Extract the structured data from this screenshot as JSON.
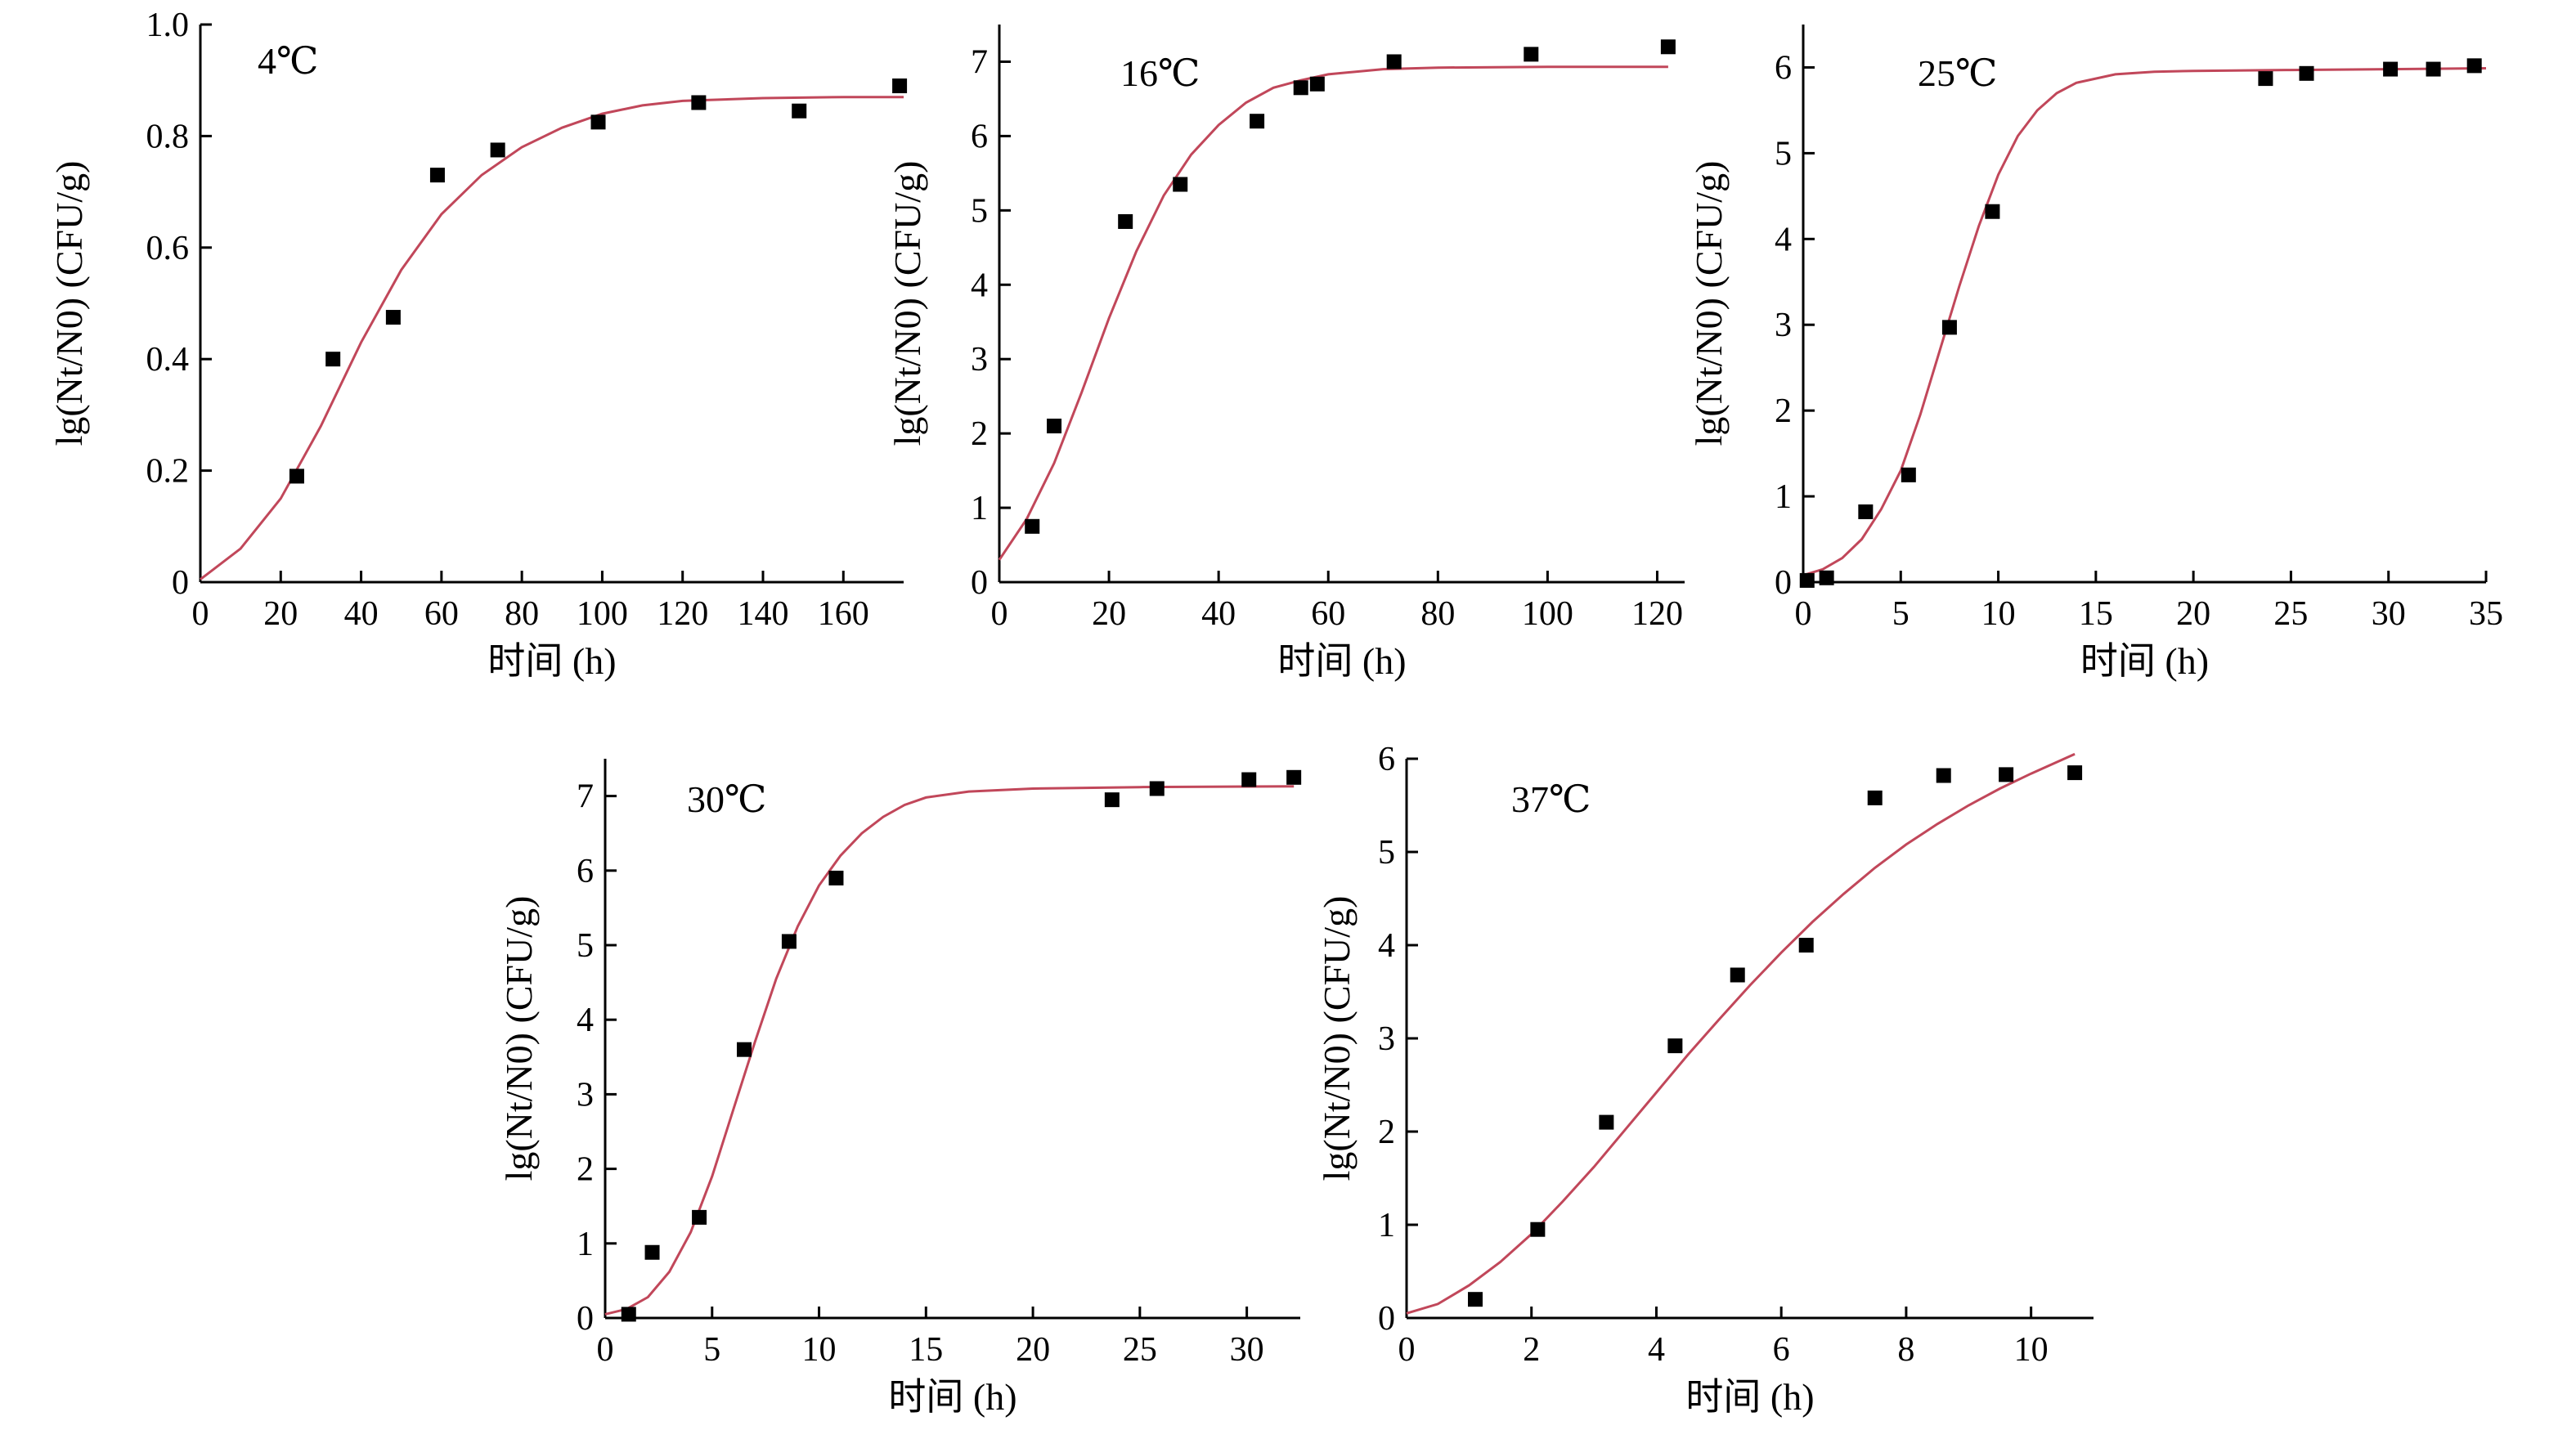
{
  "chart_data": [
    {
      "type": "scatter",
      "panel_label": "4℃",
      "xlabel": "时间 (h)",
      "ylabel": "lg(Nt/N0) (CFU/g)",
      "xlim": [
        0,
        175
      ],
      "ylim": [
        0,
        1.0
      ],
      "xticks": [
        0,
        20,
        40,
        60,
        80,
        100,
        120,
        140,
        160
      ],
      "yticks": [
        0,
        0.2,
        0.4,
        0.6,
        0.8,
        1.0
      ],
      "ytick_labels": [
        "0",
        "0.2",
        "0.4",
        "0.6",
        "0.8",
        "1.0"
      ],
      "grid": false,
      "series": [
        {
          "type": "scatter",
          "x": [
            24,
            33,
            48,
            59,
            74,
            99,
            124,
            149,
            174
          ],
          "y": [
            0.19,
            0.4,
            0.475,
            0.73,
            0.775,
            0.825,
            0.86,
            0.845,
            0.89
          ]
        },
        {
          "type": "line",
          "x": [
            0,
            10,
            20,
            30,
            40,
            50,
            60,
            70,
            80,
            90,
            100,
            110,
            120,
            140,
            160,
            175
          ],
          "y": [
            0.005,
            0.06,
            0.15,
            0.28,
            0.43,
            0.56,
            0.66,
            0.73,
            0.78,
            0.815,
            0.84,
            0.855,
            0.863,
            0.868,
            0.87,
            0.87
          ]
        }
      ]
    },
    {
      "type": "scatter",
      "panel_label": "16℃",
      "xlabel": "时间 (h)",
      "ylabel": "lg(Nt/N0) (CFU/g)",
      "xlim": [
        0,
        125
      ],
      "ylim": [
        0,
        7.5
      ],
      "xticks": [
        0,
        20,
        40,
        60,
        80,
        100,
        120
      ],
      "yticks": [
        0,
        1,
        2,
        3,
        4,
        5,
        6,
        7
      ],
      "ytick_labels": [
        "0",
        "1",
        "2",
        "3",
        "4",
        "5",
        "6",
        "7"
      ],
      "grid": false,
      "series": [
        {
          "type": "scatter",
          "x": [
            6,
            10,
            23,
            33,
            47,
            55,
            58,
            72,
            97,
            122
          ],
          "y": [
            0.75,
            2.1,
            4.85,
            5.35,
            6.2,
            6.65,
            6.7,
            7.0,
            7.1,
            7.2
          ]
        },
        {
          "type": "line",
          "x": [
            0,
            5,
            10,
            15,
            20,
            25,
            30,
            35,
            40,
            45,
            50,
            55,
            60,
            70,
            80,
            100,
            122
          ],
          "y": [
            0.3,
            0.85,
            1.6,
            2.55,
            3.55,
            4.45,
            5.2,
            5.75,
            6.15,
            6.45,
            6.65,
            6.75,
            6.83,
            6.9,
            6.92,
            6.93,
            6.93
          ]
        }
      ]
    },
    {
      "type": "scatter",
      "panel_label": "25℃",
      "xlabel": "时间 (h)",
      "ylabel": "lg(Nt/N0) (CFU/g)",
      "xlim": [
        0,
        35
      ],
      "ylim": [
        0,
        6.5
      ],
      "xticks": [
        0,
        5,
        10,
        15,
        20,
        25,
        30,
        35
      ],
      "yticks": [
        0,
        1,
        2,
        3,
        4,
        5,
        6
      ],
      "ytick_labels": [
        "0",
        "1",
        "2",
        "3",
        "4",
        "5",
        "6"
      ],
      "grid": false,
      "series": [
        {
          "type": "scatter",
          "x": [
            0.2,
            1.2,
            3.2,
            5.4,
            7.5,
            9.7,
            23.7,
            25.8,
            30.1,
            32.3,
            34.4
          ],
          "y": [
            0.02,
            0.05,
            0.82,
            1.25,
            2.97,
            4.32,
            5.87,
            5.93,
            5.98,
            5.98,
            6.02
          ]
        },
        {
          "type": "line",
          "x": [
            0,
            1,
            2,
            3,
            4,
            5,
            6,
            7,
            8,
            9,
            10,
            11,
            12,
            13,
            14,
            16,
            18,
            20,
            25,
            30,
            35
          ],
          "y": [
            0.08,
            0.15,
            0.28,
            0.5,
            0.85,
            1.3,
            1.95,
            2.7,
            3.45,
            4.15,
            4.75,
            5.2,
            5.5,
            5.7,
            5.82,
            5.92,
            5.95,
            5.96,
            5.97,
            5.98,
            5.99
          ]
        }
      ]
    },
    {
      "type": "scatter",
      "panel_label": "30℃",
      "xlabel": "时间 (h)",
      "ylabel": "lg(Nt/N0) (CFU/g)",
      "xlim": [
        0,
        32.5
      ],
      "ylim": [
        0,
        7.5
      ],
      "xticks": [
        0,
        5,
        10,
        15,
        20,
        25,
        30
      ],
      "yticks": [
        0,
        1,
        2,
        3,
        4,
        5,
        6,
        7
      ],
      "ytick_labels": [
        "0",
        "1",
        "2",
        "3",
        "4",
        "5",
        "6",
        "7"
      ],
      "grid": false,
      "series": [
        {
          "type": "scatter",
          "x": [
            1.1,
            2.2,
            4.4,
            6.5,
            8.6,
            10.8,
            23.7,
            25.8,
            30.1,
            32.2
          ],
          "y": [
            0.05,
            0.88,
            1.35,
            3.6,
            5.05,
            5.9,
            6.95,
            7.1,
            7.22,
            7.25
          ]
        },
        {
          "type": "line",
          "x": [
            0,
            1,
            2,
            3,
            4,
            5,
            6,
            7,
            8,
            9,
            10,
            11,
            12,
            13,
            14,
            15,
            17,
            20,
            25,
            32.2
          ],
          "y": [
            0.05,
            0.12,
            0.28,
            0.62,
            1.15,
            1.9,
            2.8,
            3.7,
            4.55,
            5.25,
            5.8,
            6.2,
            6.5,
            6.72,
            6.88,
            6.98,
            7.06,
            7.1,
            7.12,
            7.13
          ]
        }
      ]
    },
    {
      "type": "scatter",
      "panel_label": "37℃",
      "xlabel": "时间 (h)",
      "ylabel": "lg(Nt/N0) (CFU/g)",
      "xlim": [
        0,
        11
      ],
      "ylim": [
        0,
        6
      ],
      "xticks": [
        0,
        2,
        4,
        6,
        8,
        10
      ],
      "yticks": [
        0,
        1,
        2,
        3,
        4,
        5,
        6
      ],
      "ytick_labels": [
        "0",
        "1",
        "2",
        "3",
        "4",
        "5",
        "6"
      ],
      "grid": false,
      "series": [
        {
          "type": "scatter",
          "x": [
            1.1,
            2.1,
            3.2,
            4.3,
            5.3,
            6.4,
            7.5,
            8.6,
            9.6,
            10.7
          ],
          "y": [
            0.2,
            0.95,
            2.1,
            2.92,
            3.68,
            4.0,
            5.58,
            5.82,
            5.83,
            5.85
          ]
        },
        {
          "type": "line",
          "x": [
            0,
            0.5,
            1,
            1.5,
            2,
            2.5,
            3,
            3.5,
            4,
            4.5,
            5,
            5.5,
            6,
            6.5,
            7,
            7.5,
            8,
            8.5,
            9,
            9.5,
            10,
            10.7
          ],
          "y": [
            0.05,
            0.15,
            0.35,
            0.6,
            0.9,
            1.25,
            1.62,
            2.02,
            2.42,
            2.82,
            3.2,
            3.57,
            3.92,
            4.25,
            4.55,
            4.83,
            5.08,
            5.3,
            5.5,
            5.68,
            5.84,
            6.05
          ]
        }
      ]
    }
  ]
}
